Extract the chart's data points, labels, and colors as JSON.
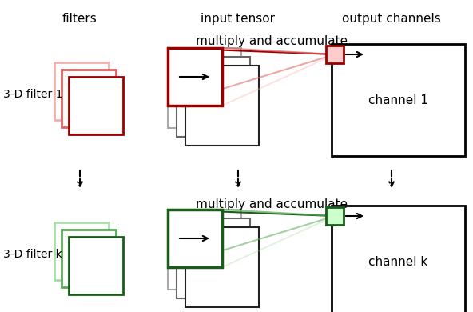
{
  "bg_color": "#ffffff",
  "filters_label": "filters",
  "input_tensor_label": "input tensor",
  "output_channels_label": "output channels",
  "multiply_accumulate_label": "multiply and accumulate",
  "filter1_label": "3-D filter 1",
  "filterk_label": "3-D filter k",
  "channel1_label": "channel 1",
  "channelk_label": "channel k",
  "red_dark": "#9b0000",
  "red_mid": "#e06060",
  "red_light": "#f0b0b0",
  "green_dark": "#1a5c1a",
  "green_mid": "#5aaa5a",
  "green_light": "#aadcaa",
  "black": "#000000",
  "gray_dark": "#222222",
  "gray_mid": "#666666",
  "gray_light": "#aaaaaa",
  "fig_w": 5.92,
  "fig_h": 3.9
}
